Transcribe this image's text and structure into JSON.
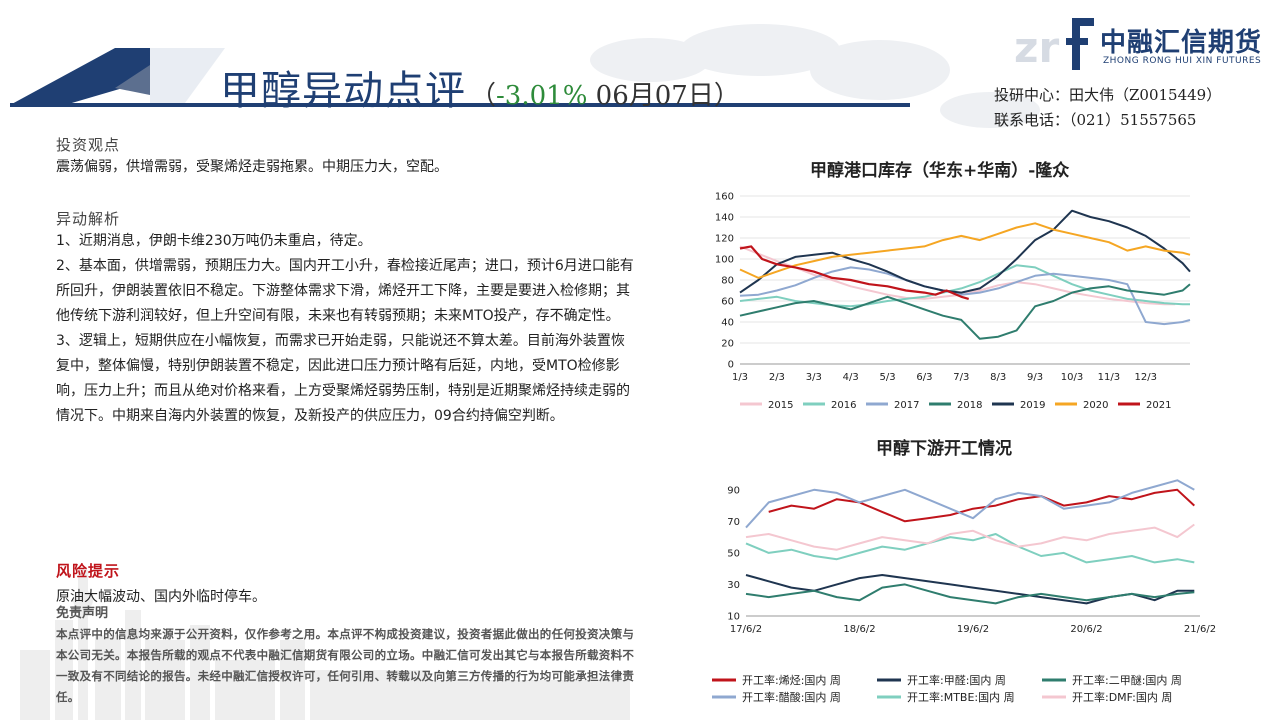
{
  "header": {
    "title": "甲醇异动点评",
    "sub_open": "（",
    "pct": "-3.01%",
    "date": " 06月07日",
    "sub_close": "）",
    "colors": {
      "title": "#1f3f73",
      "pct": "#2e8b3a",
      "accent": "#1f3f73"
    }
  },
  "logo": {
    "cn": "中融汇信期货",
    "en": "ZHONG RONG HUI XIN FUTURES"
  },
  "contact": {
    "line1": "投研中心：田大伟（Z0015449）",
    "line2": "联系电话：（021）51557565"
  },
  "sections": {
    "view_h": "投资观点",
    "view_text": "震荡偏弱，供增需弱，受聚烯烃走弱拖累。中期压力大，空配。",
    "analysis_h": "异动解析",
    "analysis": [
      "1、近期消息，伊朗卡维230万吨仍未重启，待定。",
      "2、基本面，供增需弱，预期压力大。国内开工小升，春检接近尾声；进口，预计6月进口能有所回升，伊朗装置依旧不稳定。下游整体需求下滑，烯烃开工下降，主要是要进入检修期；其他传统下游利润较好，但上升空间有限，未来也有转弱预期；未来MTO投产，存不确定性。",
      "3、逻辑上，短期供应在小幅恢复，而需求已开始走弱，只能说还不算太差。目前海外装置恢复中，整体偏慢，特别伊朗装置不稳定，因此进口压力预计略有后延，内地，受MTO检修影响，压力上升；而且从绝对价格来看，上方受聚烯烃弱势压制，特别是近期聚烯烃持续走弱的情况下。中期来自海内外装置的恢复，及新投产的供应压力，09合约持偏空判断。"
    ],
    "risk_h": "风险提示",
    "risk_text": "原油大幅波动、国内外临时停车。",
    "disclaimer_h": "免责声明",
    "disclaimer": "本点评中的信息均来源于公开资料，仅作参考之用。本点评不构成投资建议，投资者据此做出的任何投资决策与本公司无关。本报告所载的观点不代表中融汇信期货有限公司的立场。中融汇信可发出其它与本报告所载资料不一致及有不同结论的报告。未经中融汇信授权许可，任何引用、转载以及向第三方传播的行为均可能承担法律责任。"
  },
  "chart_data": [
    {
      "type": "line",
      "title": "甲醇港口库存（华东+华南）-隆众",
      "xlabel": "",
      "ylabel": "",
      "ylim": [
        0,
        160
      ],
      "yticks": [
        0,
        20,
        40,
        60,
        80,
        100,
        120,
        140,
        160
      ],
      "x_ticks": [
        "1/3",
        "2/3",
        "3/3",
        "4/3",
        "5/3",
        "6/3",
        "7/3",
        "8/3",
        "9/3",
        "10/3",
        "11/3",
        "12/3"
      ],
      "xlim": [
        0,
        12.2
      ],
      "legend": "bottom",
      "series": [
        {
          "name": "2015",
          "color": "#f4c7d0",
          "x": [
            0,
            0.5,
            1,
            1.5,
            2,
            2.5,
            3,
            3.5,
            4,
            4.5,
            5,
            5.5,
            6,
            6.5,
            7,
            7.5,
            8,
            8.5,
            9,
            9.5,
            10,
            10.5,
            11,
            11.5,
            11.8
          ],
          "values": [
            112,
            105,
            98,
            92,
            85,
            80,
            74,
            70,
            66,
            63,
            62,
            64,
            66,
            70,
            75,
            78,
            76,
            72,
            68,
            65,
            62,
            60,
            58,
            57,
            57
          ]
        },
        {
          "name": "2016",
          "color": "#7fcfbf",
          "x": [
            0,
            0.5,
            1,
            1.5,
            2,
            2.5,
            3,
            3.5,
            4,
            4.5,
            5,
            5.5,
            6,
            6.5,
            7,
            7.5,
            8,
            8.5,
            9,
            9.5,
            10,
            10.5,
            11,
            11.5,
            12,
            12.2
          ],
          "values": [
            60,
            62,
            64,
            60,
            58,
            56,
            55,
            57,
            60,
            62,
            64,
            68,
            72,
            78,
            86,
            94,
            92,
            84,
            76,
            70,
            66,
            62,
            60,
            58,
            57,
            57
          ]
        },
        {
          "name": "2017",
          "color": "#8fa8d0",
          "x": [
            0,
            0.5,
            1,
            1.5,
            2,
            2.5,
            3,
            3.5,
            4,
            4.5,
            5,
            5.5,
            6,
            6.5,
            7,
            7.5,
            8,
            8.5,
            9,
            9.5,
            10,
            10.5,
            11,
            11.5,
            12,
            12.2
          ],
          "values": [
            65,
            66,
            70,
            75,
            82,
            88,
            92,
            90,
            86,
            80,
            74,
            70,
            66,
            68,
            72,
            78,
            84,
            86,
            84,
            82,
            80,
            76,
            40,
            38,
            40,
            42
          ]
        },
        {
          "name": "2018",
          "color": "#2f7d6e",
          "x": [
            0,
            0.5,
            1,
            1.5,
            2,
            2.5,
            3,
            3.5,
            4,
            4.5,
            5,
            5.5,
            6,
            6.5,
            7,
            7.5,
            8,
            8.5,
            9,
            9.5,
            10,
            10.5,
            11,
            11.5,
            12,
            12.2
          ],
          "values": [
            46,
            50,
            54,
            58,
            60,
            56,
            52,
            58,
            64,
            58,
            52,
            46,
            42,
            24,
            26,
            32,
            55,
            60,
            68,
            72,
            74,
            70,
            68,
            66,
            70,
            76
          ]
        },
        {
          "name": "2019",
          "color": "#1f3550",
          "x": [
            0,
            0.5,
            1,
            1.5,
            2,
            2.5,
            3,
            3.5,
            4,
            4.5,
            5,
            5.5,
            6,
            6.5,
            7,
            7.5,
            8,
            8.5,
            9,
            9.5,
            10,
            10.5,
            11,
            11.5,
            12,
            12.2
          ],
          "values": [
            68,
            80,
            95,
            102,
            104,
            106,
            100,
            95,
            88,
            80,
            74,
            70,
            68,
            72,
            84,
            100,
            118,
            128,
            146,
            140,
            136,
            130,
            122,
            110,
            96,
            88
          ]
        },
        {
          "name": "2020",
          "color": "#f5a623",
          "x": [
            0,
            0.5,
            1,
            1.5,
            2,
            2.5,
            3,
            3.5,
            4,
            4.5,
            5,
            5.5,
            6,
            6.5,
            7,
            7.5,
            8,
            8.5,
            9,
            9.5,
            10,
            10.5,
            11,
            11.5,
            12,
            12.2
          ],
          "values": [
            90,
            82,
            88,
            94,
            98,
            102,
            104,
            106,
            108,
            110,
            112,
            118,
            122,
            118,
            124,
            130,
            134,
            128,
            124,
            120,
            116,
            108,
            112,
            108,
            106,
            104
          ]
        },
        {
          "name": "2021",
          "color": "#c0141b",
          "x": [
            0,
            0.3,
            0.6,
            1,
            1.5,
            2,
            2.5,
            3,
            3.5,
            4,
            4.5,
            5,
            5.3,
            5.6,
            6,
            6.2
          ],
          "values": [
            110,
            112,
            100,
            95,
            92,
            88,
            82,
            80,
            76,
            74,
            70,
            68,
            66,
            70,
            64,
            62
          ]
        }
      ]
    },
    {
      "type": "line",
      "title": "甲醇下游开工情况",
      "xlabel": "",
      "ylabel": "",
      "ylim": [
        10,
        100
      ],
      "yticks": [
        10,
        30,
        50,
        70,
        90
      ],
      "x_ticks": [
        "17/6/2",
        "18/6/2",
        "19/6/2",
        "20/6/2",
        "21/6/2"
      ],
      "xlim": [
        0,
        4
      ],
      "legend": "bottom",
      "series": [
        {
          "name": "开工率:烯烃:国内 周",
          "color": "#c0141b",
          "x": [
            0.2,
            0.4,
            0.6,
            0.8,
            1,
            1.2,
            1.4,
            1.6,
            1.8,
            2,
            2.2,
            2.4,
            2.6,
            2.8,
            3,
            3.2,
            3.4,
            3.6,
            3.8,
            3.95
          ],
          "values": [
            76,
            80,
            78,
            84,
            82,
            76,
            70,
            72,
            74,
            78,
            80,
            84,
            86,
            80,
            82,
            86,
            84,
            88,
            90,
            80
          ]
        },
        {
          "name": "开工率:甲醛:国内 周",
          "color": "#1f3550",
          "x": [
            0,
            0.2,
            0.4,
            0.6,
            0.8,
            1,
            1.2,
            1.4,
            1.6,
            1.8,
            2,
            2.2,
            2.4,
            2.6,
            2.8,
            3,
            3.2,
            3.4,
            3.6,
            3.8,
            3.95
          ],
          "values": [
            36,
            32,
            28,
            26,
            30,
            34,
            36,
            34,
            32,
            30,
            28,
            26,
            24,
            22,
            20,
            18,
            22,
            24,
            20,
            26,
            26
          ]
        },
        {
          "name": "开工率:二甲醚:国内 周",
          "color": "#2f7d6e",
          "x": [
            0,
            0.2,
            0.4,
            0.6,
            0.8,
            1,
            1.2,
            1.4,
            1.6,
            1.8,
            2,
            2.2,
            2.4,
            2.6,
            2.8,
            3,
            3.2,
            3.4,
            3.6,
            3.8,
            3.95
          ],
          "values": [
            24,
            22,
            24,
            26,
            22,
            20,
            28,
            30,
            26,
            22,
            20,
            18,
            22,
            24,
            22,
            20,
            22,
            24,
            22,
            24,
            25
          ]
        },
        {
          "name": "开工率:醋酸:国内 周",
          "color": "#8fa8d0",
          "x": [
            0,
            0.2,
            0.4,
            0.6,
            0.8,
            1,
            1.2,
            1.4,
            1.6,
            1.8,
            2,
            2.2,
            2.4,
            2.6,
            2.8,
            3,
            3.2,
            3.4,
            3.6,
            3.8,
            3.95
          ],
          "values": [
            66,
            82,
            86,
            90,
            88,
            82,
            86,
            90,
            84,
            78,
            72,
            84,
            88,
            86,
            78,
            80,
            82,
            88,
            92,
            96,
            90
          ]
        },
        {
          "name": "开工率:MTBE:国内 周",
          "color": "#7fcfbf",
          "x": [
            0,
            0.2,
            0.4,
            0.6,
            0.8,
            1,
            1.2,
            1.4,
            1.6,
            1.8,
            2,
            2.2,
            2.4,
            2.6,
            2.8,
            3,
            3.2,
            3.4,
            3.6,
            3.8,
            3.95
          ],
          "values": [
            56,
            50,
            52,
            48,
            46,
            50,
            54,
            52,
            56,
            60,
            58,
            62,
            54,
            48,
            50,
            44,
            46,
            48,
            44,
            46,
            44
          ]
        },
        {
          "name": "开工率:DMF:国内 周",
          "color": "#f4c7d0",
          "x": [
            0,
            0.2,
            0.4,
            0.6,
            0.8,
            1,
            1.2,
            1.4,
            1.6,
            1.8,
            2,
            2.2,
            2.4,
            2.6,
            2.8,
            3,
            3.2,
            3.4,
            3.6,
            3.8,
            3.95
          ],
          "values": [
            60,
            62,
            58,
            54,
            52,
            56,
            60,
            58,
            56,
            62,
            64,
            58,
            54,
            56,
            60,
            58,
            62,
            64,
            66,
            60,
            68
          ]
        }
      ]
    }
  ]
}
